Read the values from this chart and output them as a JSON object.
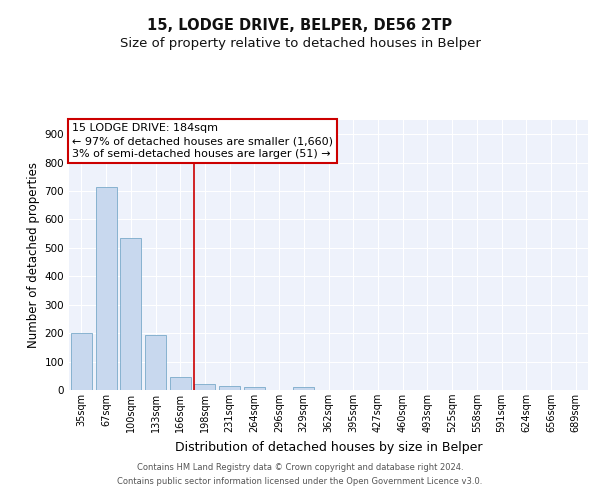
{
  "title_line1": "15, LODGE DRIVE, BELPER, DE56 2TP",
  "title_line2": "Size of property relative to detached houses in Belper",
  "xlabel": "Distribution of detached houses by size in Belper",
  "ylabel": "Number of detached properties",
  "categories": [
    "35sqm",
    "67sqm",
    "100sqm",
    "133sqm",
    "166sqm",
    "198sqm",
    "231sqm",
    "264sqm",
    "296sqm",
    "329sqm",
    "362sqm",
    "395sqm",
    "427sqm",
    "460sqm",
    "493sqm",
    "525sqm",
    "558sqm",
    "591sqm",
    "624sqm",
    "656sqm",
    "689sqm"
  ],
  "values": [
    200,
    716,
    534,
    192,
    45,
    20,
    14,
    10,
    0,
    9,
    0,
    0,
    0,
    0,
    0,
    0,
    0,
    0,
    0,
    0,
    0
  ],
  "bar_color": "#c8d8ee",
  "bar_edge_color": "#7aaaca",
  "red_line_x": 4.56,
  "annotation_text_line1": "15 LODGE DRIVE: 184sqm",
  "annotation_text_line2": "← 97% of detached houses are smaller (1,660)",
  "annotation_text_line3": "3% of semi-detached houses are larger (51) →",
  "annotation_box_color": "#ffffff",
  "annotation_box_edge": "#cc0000",
  "ylim": [
    0,
    950
  ],
  "yticks": [
    0,
    100,
    200,
    300,
    400,
    500,
    600,
    700,
    800,
    900
  ],
  "footer_line1": "Contains HM Land Registry data © Crown copyright and database right 2024.",
  "footer_line2": "Contains public sector information licensed under the Open Government Licence v3.0.",
  "bg_color": "#eef2fb",
  "grid_color": "#ffffff",
  "title_fontsize": 10.5,
  "subtitle_fontsize": 9.5,
  "axis_label_fontsize": 8.5,
  "tick_fontsize": 7.5,
  "footer_fontsize": 6,
  "annot_fontsize": 8
}
